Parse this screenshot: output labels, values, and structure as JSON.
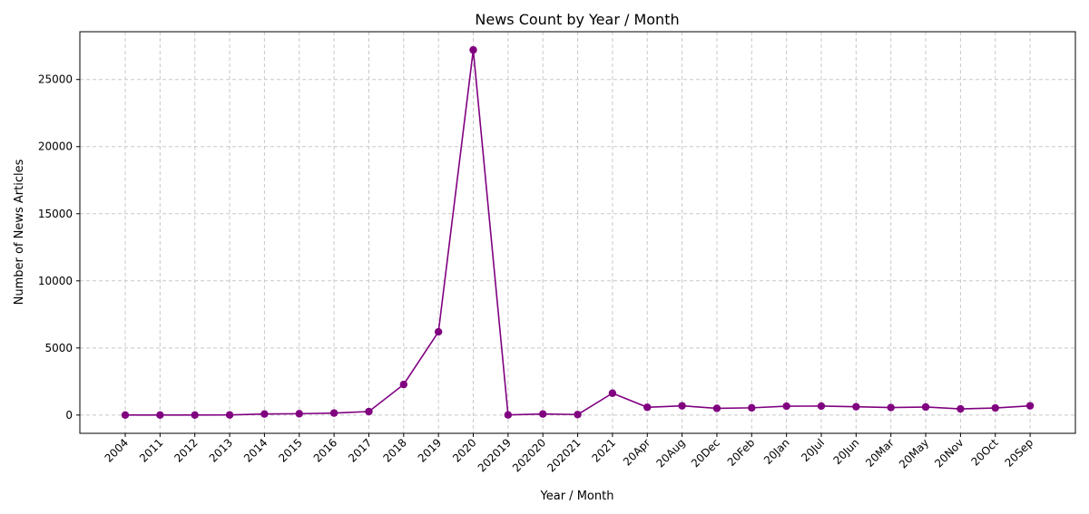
{
  "chart_data": {
    "type": "line",
    "title": "News Count by Year / Month",
    "xlabel": "Year / Month",
    "ylabel": "Number of News Articles",
    "categories": [
      "2004",
      "2011",
      "2012",
      "2013",
      "2014",
      "2015",
      "2016",
      "2017",
      "2018",
      "2019",
      "2020",
      "202019",
      "202020",
      "202021",
      "2021",
      "20Apr",
      "20Aug",
      "20Dec",
      "20Feb",
      "20Jan",
      "20Jul",
      "20Jun",
      "20Mar",
      "20May",
      "20Nov",
      "20Oct",
      "20Sep"
    ],
    "series": [
      {
        "values": [
          2,
          3,
          5,
          10,
          80,
          100,
          150,
          260,
          2280,
          6200,
          27200,
          10,
          80,
          40,
          1630,
          580,
          690,
          500,
          540,
          660,
          670,
          620,
          560,
          600,
          460,
          530,
          690
        ]
      }
    ],
    "ylim": [
      -1360,
      28560
    ],
    "yticks": [
      0,
      5000,
      10000,
      15000,
      20000,
      25000
    ],
    "grid": true,
    "line_color": "#800080",
    "grid_color": "#c8c8c8"
  }
}
